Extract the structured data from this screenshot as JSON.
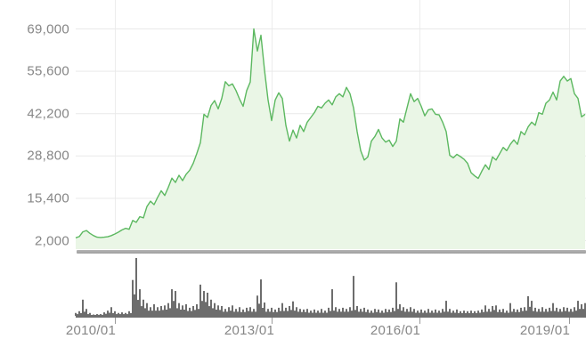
{
  "chart_data": {
    "type": "line",
    "subtype": "price-area-with-volume-bars",
    "legend": "none",
    "grid": "on",
    "colors": {
      "price_line": "#5cb860",
      "price_fill": "#eaf6e6",
      "volume_bar": "#6d6d6d",
      "gridline": "#e9e9e9",
      "axis_text": "#868686",
      "tick_mark": "#9a9a9a",
      "scrollbar": "#a9a9a9"
    },
    "x_ticks": [
      {
        "label": "2010/01"
      },
      {
        "label": "2013/01"
      },
      {
        "label": "2016/01"
      },
      {
        "label": "2019/01"
      }
    ],
    "price": {
      "ylim": [
        2000,
        69000
      ],
      "y_ticks": [
        {
          "label": "69,000",
          "value": 69000
        },
        {
          "label": "55,600",
          "value": 55600
        },
        {
          "label": "42,200",
          "value": 42200
        },
        {
          "label": "28,800",
          "value": 28800
        },
        {
          "label": "15,400",
          "value": 15400
        },
        {
          "label": "2,000",
          "value": 2000
        }
      ],
      "values": [
        2900,
        3300,
        4800,
        5200,
        4300,
        3600,
        3100,
        3000,
        3100,
        3250,
        3600,
        4100,
        4700,
        5400,
        5900,
        5600,
        8400,
        7800,
        9600,
        9200,
        12800,
        14500,
        13400,
        15700,
        17800,
        16300,
        18900,
        21800,
        20400,
        22700,
        21000,
        23000,
        24300,
        26500,
        29600,
        33000,
        42000,
        41000,
        44800,
        46300,
        43700,
        47000,
        52300,
        51000,
        51600,
        49500,
        46800,
        44500,
        49500,
        52200,
        69000,
        62000,
        67000,
        56000,
        46500,
        40000,
        46500,
        48800,
        47000,
        38500,
        33500,
        37000,
        34500,
        38500,
        36500,
        39500,
        41000,
        42500,
        44500,
        44000,
        45500,
        46500,
        45000,
        47500,
        48500,
        47500,
        50500,
        48500,
        44000,
        36500,
        30500,
        27500,
        28500,
        33500,
        35000,
        37200,
        34500,
        33200,
        33800,
        31800,
        33500,
        40500,
        39500,
        44000,
        48500,
        46000,
        47000,
        44500,
        41500,
        43400,
        43700,
        42000,
        41800,
        39500,
        36500,
        29000,
        28200,
        29300,
        28600,
        27800,
        26500,
        23500,
        22500,
        21700,
        24000,
        26000,
        24500,
        28500,
        27500,
        29500,
        31500,
        30500,
        32500,
        33900,
        32500,
        36500,
        35500,
        38000,
        39500,
        38500,
        42500,
        42000,
        45500,
        46500,
        49000,
        46500,
        52500,
        54000,
        52500,
        53300,
        48500,
        47000,
        41200,
        42000
      ]
    },
    "volume": {
      "unit": "percent-of-max",
      "values_pct": [
        5,
        8,
        28,
        12,
        5,
        2,
        3,
        3,
        6,
        9,
        15,
        8,
        5,
        6,
        5,
        8,
        62,
        100,
        46,
        28,
        22,
        15,
        20,
        15,
        17,
        18,
        22,
        46,
        43,
        22,
        18,
        20,
        14,
        17,
        20,
        54,
        43,
        40,
        28,
        22,
        18,
        17,
        12,
        15,
        18,
        12,
        15,
        11,
        14,
        15,
        12,
        35,
        63,
        23,
        12,
        14,
        11,
        14,
        22,
        14,
        17,
        25,
        15,
        12,
        11,
        12,
        9,
        11,
        9,
        12,
        9,
        14,
        46,
        15,
        12,
        14,
        12,
        15,
        69,
        17,
        12,
        14,
        11,
        9,
        12,
        11,
        9,
        12,
        11,
        14,
        58,
        20,
        15,
        12,
        15,
        12,
        9,
        11,
        9,
        12,
        9,
        11,
        9,
        12,
        26,
        12,
        9,
        11,
        8,
        9,
        8,
        9,
        8,
        9,
        11,
        18,
        12,
        17,
        18,
        11,
        12,
        9,
        22,
        12,
        11,
        14,
        15,
        34,
        26,
        14,
        12,
        15,
        12,
        14,
        22,
        14,
        12,
        15,
        14,
        12,
        15,
        26,
        20,
        22
      ]
    }
  }
}
